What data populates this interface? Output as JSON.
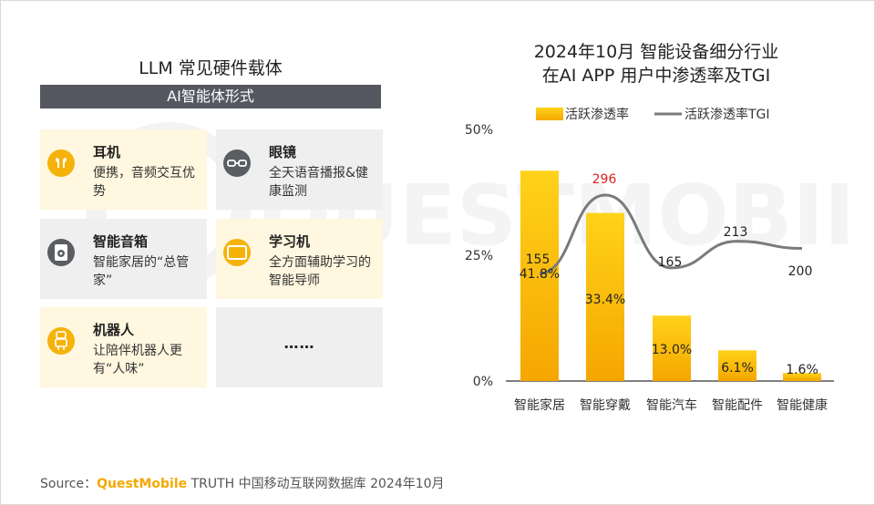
{
  "left_panel": {
    "title": "LLM 常见硬件载体",
    "banner": "AI智能体形式",
    "cards": [
      {
        "title": "耳机",
        "desc": "便携，音频交互优势",
        "icon": "earbuds-icon",
        "style": "yellow"
      },
      {
        "title": "眼镜",
        "desc": "全天语音播报&健康监测",
        "icon": "glasses-icon",
        "style": "gray"
      },
      {
        "title": "智能音箱",
        "desc": "智能家居的“总管家”",
        "icon": "speaker-icon",
        "style": "gray"
      },
      {
        "title": "学习机",
        "desc": "全方面辅助学习的智能导师",
        "icon": "tablet-icon",
        "style": "yellow"
      },
      {
        "title": "机器人",
        "desc": "让陪伴机器人更有“人味”",
        "icon": "robot-icon",
        "style": "yellow"
      },
      {
        "title": "",
        "desc": "……",
        "icon": "",
        "style": "gray"
      }
    ]
  },
  "chart_title_line1": "2024年10月 智能设备细分行业",
  "chart_title_line2": "在AI APP 用户中渗透率及TGI",
  "chart_data": {
    "type": "bar",
    "categories": [
      "智能家居",
      "智能穿戴",
      "智能汽车",
      "智能配件",
      "智能健康"
    ],
    "series": [
      {
        "name": "活跃渗透率",
        "kind": "bar",
        "values": [
          41.8,
          33.4,
          13.0,
          6.1,
          1.6
        ],
        "labels": [
          "41.8%",
          "33.4%",
          "13.0%",
          "6.1%",
          "1.6%"
        ]
      },
      {
        "name": "活跃渗透率TGI",
        "kind": "line",
        "values": [
          155,
          296,
          165,
          213,
          200
        ],
        "labels": [
          "155",
          "296",
          "165",
          "213",
          "200"
        ]
      }
    ],
    "ylim": [
      0,
      50
    ],
    "yticks": [
      "0%",
      "25%",
      "50%"
    ],
    "tgi_highlight_index": 1,
    "legend_position": "top",
    "colors": {
      "bar_top": "#ffd21a",
      "bar_bottom": "#f5a600",
      "line": "#7a7a7a",
      "highlight": "#e0201e"
    }
  },
  "watermark": "QUESTMOBILE",
  "source": {
    "prefix": "Source：",
    "brand": "QuestMobile",
    "rest": " TRUTH 中国移动互联网数据库 2024年10月"
  }
}
